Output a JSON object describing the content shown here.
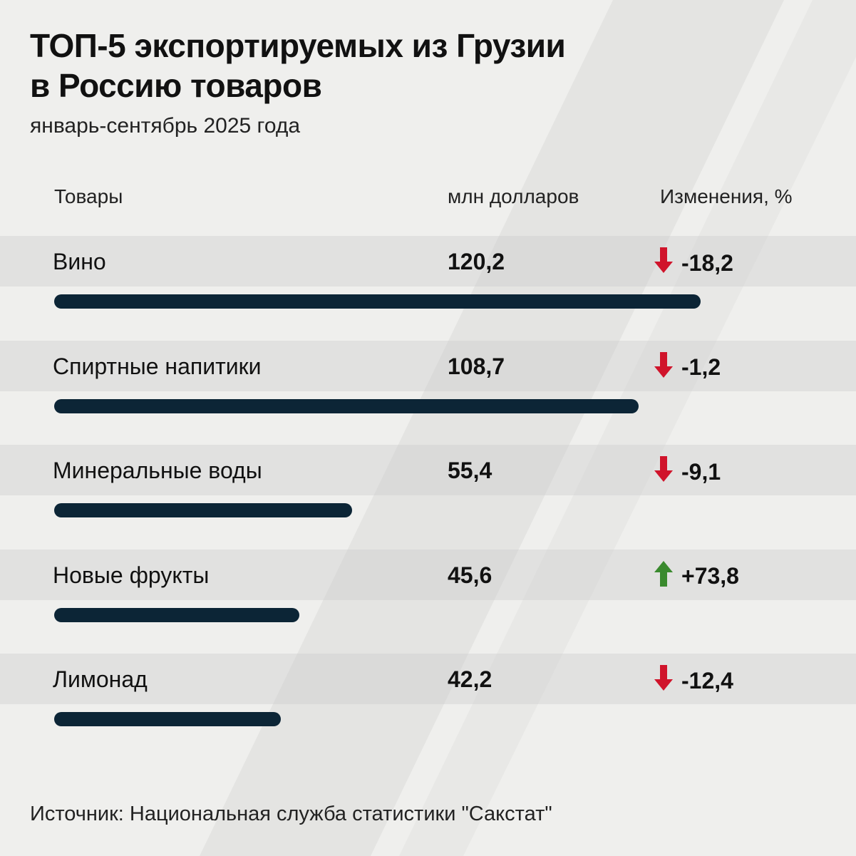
{
  "chart_data": {
    "type": "bar",
    "orientation": "horizontal",
    "title": "ТОП-5 экспортируемых из Грузии в Россию товаров",
    "subtitle": "январь-сентябрь 2025 года",
    "columns": [
      "Товары",
      "млн долларов",
      "Изменения, %"
    ],
    "categories": [
      "Вино",
      "Спиртные напитики",
      "Минеральные воды",
      "Новые фрукты",
      "Лимонад"
    ],
    "values": [
      120.2,
      108.7,
      55.4,
      45.6,
      42.2
    ],
    "value_labels": [
      "120,2",
      "108,7",
      "55,4",
      "45,6",
      "42,2"
    ],
    "changes": [
      -18.2,
      -1.2,
      -9.1,
      73.8,
      -12.4
    ],
    "change_labels": [
      "-18,2",
      "-1,2",
      "-9,1",
      "+73,8",
      "-12,4"
    ],
    "source": "Источник: Национальная служба статистики \"Сакстат\"",
    "colors": {
      "bar": "#0c2536",
      "down": "#d0142b",
      "up": "#3a8a2e",
      "background": "#efefed"
    }
  }
}
